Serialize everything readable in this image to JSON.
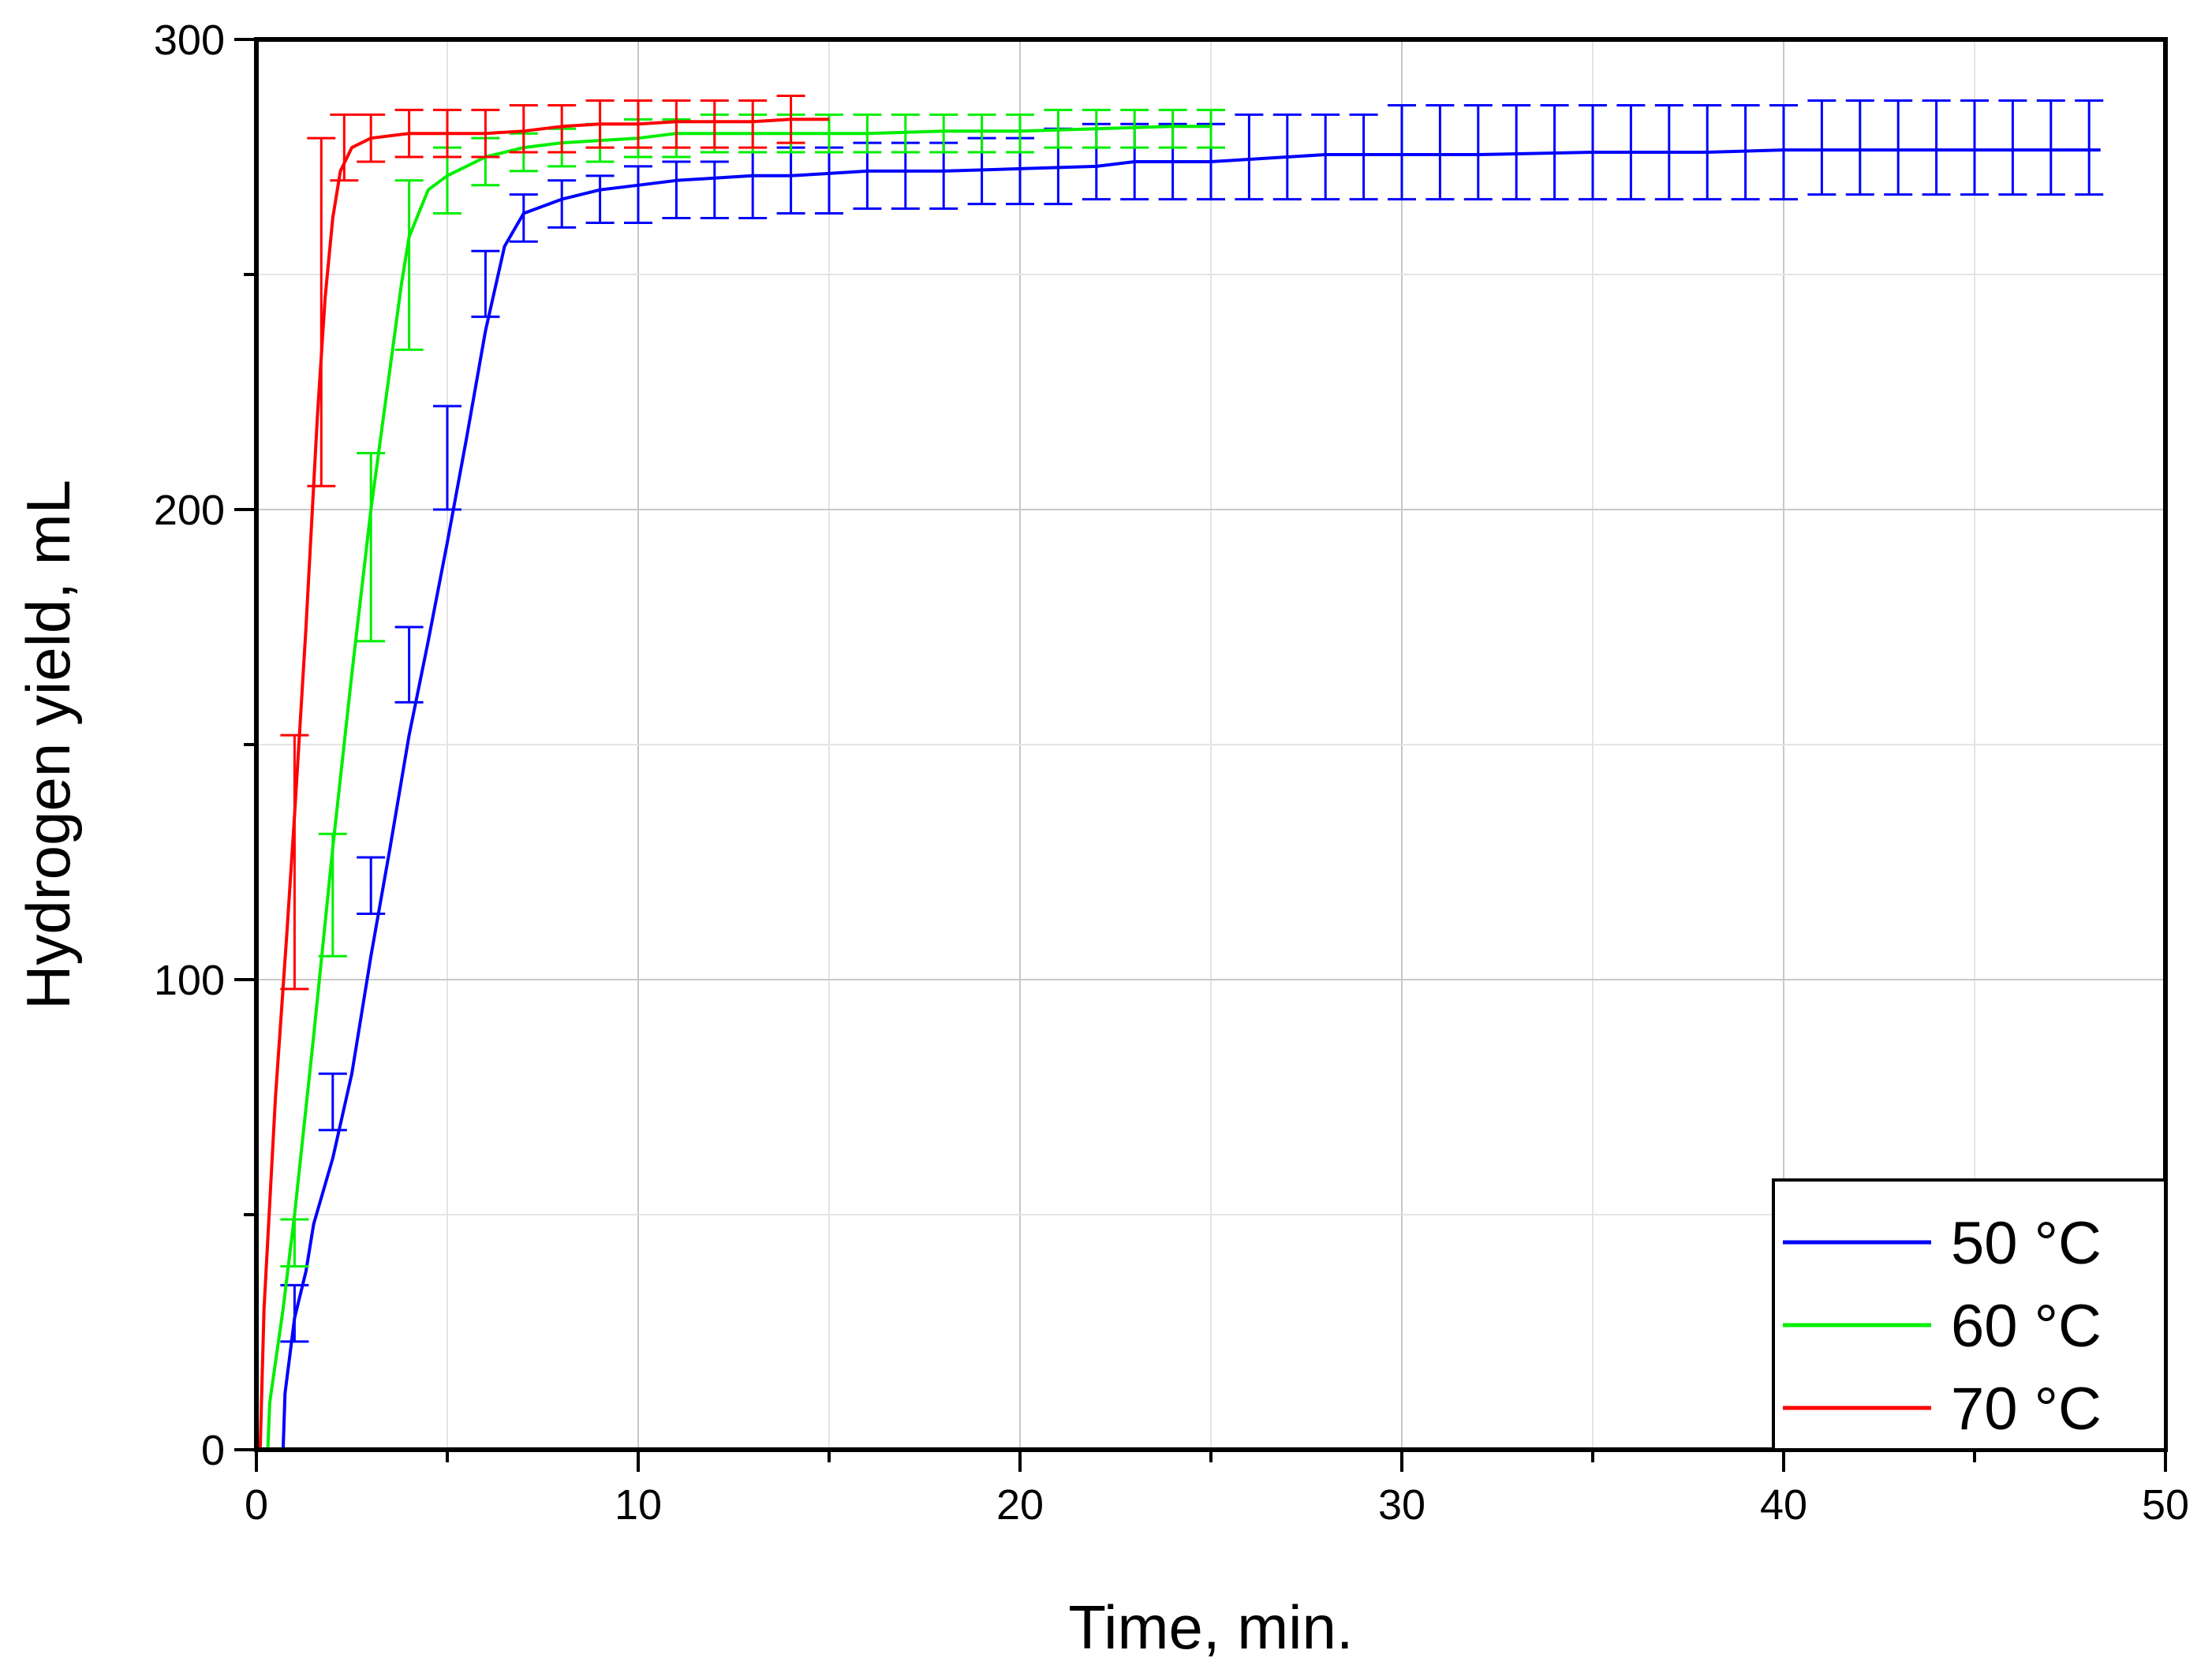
{
  "chart_data": {
    "type": "line",
    "title": "",
    "xlabel": "Time, min.",
    "ylabel": "Hydrogen yield, mL",
    "xlim": [
      0,
      50
    ],
    "ylim": [
      0,
      300
    ],
    "x_ticks": [
      0,
      10,
      20,
      30,
      40,
      50
    ],
    "y_ticks": [
      0,
      100,
      200,
      300
    ],
    "grid": true,
    "legend_position": "bottom-right",
    "series": [
      {
        "name": "50 °C",
        "color": "#0000ff",
        "points": [
          [
            0.7,
            0
          ],
          [
            0.75,
            12
          ],
          [
            1.0,
            28
          ],
          [
            1.3,
            38
          ],
          [
            1.5,
            48
          ],
          [
            2.0,
            62
          ],
          [
            2.5,
            80
          ],
          [
            3.0,
            105
          ],
          [
            3.5,
            128
          ],
          [
            4.0,
            152
          ],
          [
            4.5,
            172
          ],
          [
            5.0,
            193
          ],
          [
            5.5,
            215
          ],
          [
            6.0,
            238
          ],
          [
            6.5,
            256
          ],
          [
            7.0,
            263
          ],
          [
            8.0,
            266
          ],
          [
            9.0,
            268
          ],
          [
            10.0,
            269
          ],
          [
            11.0,
            270
          ],
          [
            12.0,
            270.5
          ],
          [
            13.0,
            271
          ],
          [
            14.0,
            271
          ],
          [
            15.0,
            271.5
          ],
          [
            16.0,
            272
          ],
          [
            18.0,
            272
          ],
          [
            20.0,
            272.5
          ],
          [
            22.0,
            273
          ],
          [
            23.0,
            274
          ],
          [
            25.0,
            274
          ],
          [
            26.0,
            274.5
          ],
          [
            27.0,
            275
          ],
          [
            28.0,
            275.5
          ],
          [
            30.0,
            275.5
          ],
          [
            32.0,
            275.5
          ],
          [
            35.0,
            276
          ],
          [
            38.0,
            276
          ],
          [
            40.0,
            276.5
          ],
          [
            42.0,
            276.5
          ],
          [
            45.0,
            276.5
          ],
          [
            48.3,
            276.5
          ]
        ],
        "errorbars": [
          [
            1.0,
            29,
            6
          ],
          [
            2.0,
            74,
            6
          ],
          [
            3.0,
            120,
            6
          ],
          [
            4.0,
            167,
            8
          ],
          [
            5.0,
            211,
            11
          ],
          [
            6.0,
            248,
            7
          ],
          [
            7.0,
            262,
            5
          ],
          [
            8.0,
            265,
            5
          ],
          [
            9.0,
            266,
            5
          ],
          [
            10.0,
            267,
            6
          ],
          [
            11.0,
            268,
            6
          ],
          [
            12.0,
            268,
            6
          ],
          [
            13.0,
            269,
            7
          ],
          [
            14.0,
            270,
            7
          ],
          [
            15.0,
            270,
            7
          ],
          [
            16.0,
            271,
            7
          ],
          [
            17.0,
            271,
            7
          ],
          [
            18.0,
            271,
            7
          ],
          [
            19.0,
            272,
            7
          ],
          [
            20.0,
            272,
            7
          ],
          [
            21.0,
            273,
            8
          ],
          [
            22.0,
            274,
            8
          ],
          [
            23.0,
            274,
            8
          ],
          [
            24.0,
            274,
            8
          ],
          [
            25.0,
            274,
            8
          ],
          [
            26.0,
            275,
            9
          ],
          [
            27.0,
            275,
            9
          ],
          [
            28.0,
            275,
            9
          ],
          [
            29.0,
            275,
            9
          ],
          [
            30.0,
            276,
            10
          ],
          [
            31.0,
            276,
            10
          ],
          [
            32.0,
            276,
            10
          ],
          [
            33.0,
            276,
            10
          ],
          [
            34.0,
            276,
            10
          ],
          [
            35.0,
            276,
            10
          ],
          [
            36.0,
            276,
            10
          ],
          [
            37.0,
            276,
            10
          ],
          [
            38.0,
            276,
            10
          ],
          [
            39.0,
            276,
            10
          ],
          [
            40.0,
            276,
            10
          ],
          [
            41.0,
            277,
            10
          ],
          [
            42.0,
            277,
            10
          ],
          [
            43.0,
            277,
            10
          ],
          [
            44.0,
            277,
            10
          ],
          [
            45.0,
            277,
            10
          ],
          [
            46.0,
            277,
            10
          ],
          [
            47.0,
            277,
            10
          ],
          [
            48.0,
            277,
            10
          ]
        ]
      },
      {
        "name": "60 °C",
        "color": "#00ee00",
        "points": [
          [
            0.3,
            0
          ],
          [
            0.35,
            10
          ],
          [
            0.7,
            30
          ],
          [
            1.0,
            50
          ],
          [
            1.5,
            88
          ],
          [
            2.0,
            128
          ],
          [
            2.5,
            165
          ],
          [
            3.0,
            200
          ],
          [
            3.5,
            230
          ],
          [
            3.8,
            248
          ],
          [
            4.0,
            258
          ],
          [
            4.5,
            268
          ],
          [
            5.0,
            271
          ],
          [
            5.5,
            273
          ],
          [
            6.0,
            275
          ],
          [
            7.0,
            277
          ],
          [
            8.0,
            278
          ],
          [
            9.0,
            278.5
          ],
          [
            10.0,
            279
          ],
          [
            11.0,
            280
          ],
          [
            12.0,
            280
          ],
          [
            14.0,
            280
          ],
          [
            16.0,
            280
          ],
          [
            18.0,
            280.5
          ],
          [
            20.0,
            280.5
          ],
          [
            22.0,
            281
          ],
          [
            24.0,
            281.5
          ],
          [
            25.0,
            281.5
          ]
        ],
        "errorbars": [
          [
            1.0,
            44,
            5
          ],
          [
            2.0,
            118,
            13
          ],
          [
            3.0,
            192,
            20
          ],
          [
            4.0,
            252,
            18
          ],
          [
            5.0,
            270,
            7
          ],
          [
            6.0,
            274,
            5
          ],
          [
            7.0,
            276,
            4
          ],
          [
            8.0,
            277,
            4
          ],
          [
            9.0,
            278,
            4
          ],
          [
            10.0,
            279,
            4
          ],
          [
            11.0,
            279,
            4
          ],
          [
            12.0,
            280,
            4
          ],
          [
            13.0,
            280,
            4
          ],
          [
            14.0,
            280,
            4
          ],
          [
            15.0,
            280,
            4
          ],
          [
            16.0,
            280,
            4
          ],
          [
            17.0,
            280,
            4
          ],
          [
            18.0,
            280,
            4
          ],
          [
            19.0,
            280,
            4
          ],
          [
            20.0,
            280,
            4
          ],
          [
            21.0,
            281,
            4
          ],
          [
            22.0,
            281,
            4
          ],
          [
            23.0,
            281,
            4
          ],
          [
            24.0,
            281,
            4
          ],
          [
            25.0,
            281,
            4
          ]
        ]
      },
      {
        "name": "70 °C",
        "color": "#ff0000",
        "points": [
          [
            0.1,
            0
          ],
          [
            0.2,
            30
          ],
          [
            0.5,
            75
          ],
          [
            0.8,
            110
          ],
          [
            1.0,
            135
          ],
          [
            1.3,
            175
          ],
          [
            1.6,
            220
          ],
          [
            1.8,
            245
          ],
          [
            2.0,
            262
          ],
          [
            2.2,
            272
          ],
          [
            2.5,
            277
          ],
          [
            3.0,
            279
          ],
          [
            4.0,
            280
          ],
          [
            5.0,
            280
          ],
          [
            6.0,
            280
          ],
          [
            7.0,
            280.5
          ],
          [
            8.0,
            281.5
          ],
          [
            9.0,
            282
          ],
          [
            10.0,
            282
          ],
          [
            11.0,
            282.5
          ],
          [
            12.0,
            282.5
          ],
          [
            13.0,
            282.5
          ],
          [
            14.0,
            283
          ],
          [
            15.0,
            283
          ]
        ],
        "errorbars": [
          [
            1.0,
            125,
            27
          ],
          [
            1.7,
            242,
            37
          ],
          [
            2.3,
            277,
            7
          ],
          [
            3.0,
            279,
            5
          ],
          [
            4.0,
            280,
            5
          ],
          [
            5.0,
            280,
            5
          ],
          [
            6.0,
            280,
            5
          ],
          [
            7.0,
            281,
            5
          ],
          [
            8.0,
            281,
            5
          ],
          [
            9.0,
            282,
            5
          ],
          [
            10.0,
            282,
            5
          ],
          [
            11.0,
            282,
            5
          ],
          [
            12.0,
            282,
            5
          ],
          [
            13.0,
            282,
            5
          ],
          [
            14.0,
            283,
            5
          ]
        ]
      }
    ]
  }
}
